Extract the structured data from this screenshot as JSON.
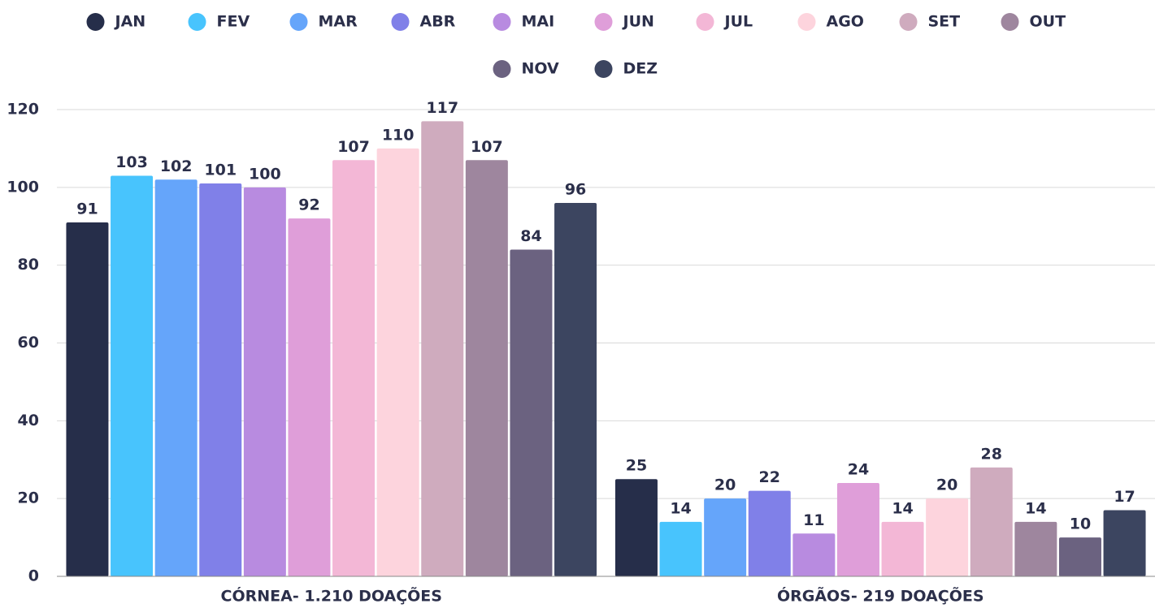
{
  "chart_data": {
    "type": "bar",
    "categories": [
      "CÓRNEA- 1.210 DOAÇÕES",
      "ÓRGÃOS- 219 DOAÇÕES"
    ],
    "series": [
      {
        "name": "JAN",
        "color": "#262e4a",
        "values": [
          91,
          25
        ]
      },
      {
        "name": "FEV",
        "color": "#48c4fd",
        "values": [
          103,
          14
        ]
      },
      {
        "name": "MAR",
        "color": "#65a5fa",
        "values": [
          102,
          20
        ]
      },
      {
        "name": "ABR",
        "color": "#8080e8",
        "values": [
          101,
          22
        ]
      },
      {
        "name": "MAI",
        "color": "#b88be0",
        "values": [
          100,
          11
        ]
      },
      {
        "name": "JUN",
        "color": "#df9ed9",
        "values": [
          92,
          24
        ]
      },
      {
        "name": "JUL",
        "color": "#f3b7d6",
        "values": [
          107,
          14
        ]
      },
      {
        "name": "AGO",
        "color": "#fdd4dd",
        "values": [
          110,
          20
        ]
      },
      {
        "name": "SET",
        "color": "#cfabbe",
        "values": [
          117,
          28
        ]
      },
      {
        "name": "OUT",
        "color": "#9e869e",
        "values": [
          107,
          14
        ]
      },
      {
        "name": "NOV",
        "color": "#6b6280",
        "values": [
          84,
          10
        ]
      },
      {
        "name": "DEZ",
        "color": "#3c4560",
        "values": [
          96,
          17
        ]
      }
    ],
    "ylim": [
      0,
      120
    ],
    "yticks": [
      0,
      20,
      40,
      60,
      80,
      100,
      120
    ],
    "grid": true,
    "legend": "top"
  }
}
